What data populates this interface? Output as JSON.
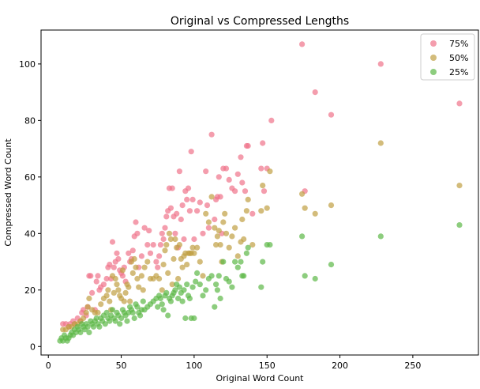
{
  "chart_data": {
    "type": "scatter",
    "title": "Original vs Compressed Lengths",
    "xlabel": "Original Word Count",
    "ylabel": "Compressed Word Count",
    "xlim": [
      -5,
      295
    ],
    "ylim": [
      -3,
      112
    ],
    "xticks": [
      0,
      50,
      100,
      150,
      200,
      250
    ],
    "yticks": [
      0,
      20,
      40,
      60,
      80,
      100
    ],
    "grid": false,
    "legend": "top-right",
    "series": [
      {
        "name": "75%",
        "color": "#f0748a",
        "points": [
          [
            10,
            8
          ],
          [
            12,
            8
          ],
          [
            14,
            7
          ],
          [
            15,
            8
          ],
          [
            17,
            9
          ],
          [
            18,
            8
          ],
          [
            20,
            10
          ],
          [
            22,
            9
          ],
          [
            23,
            12
          ],
          [
            24,
            13
          ],
          [
            26,
            11
          ],
          [
            27,
            14
          ],
          [
            28,
            25
          ],
          [
            29,
            25
          ],
          [
            30,
            19
          ],
          [
            32,
            13
          ],
          [
            33,
            23
          ],
          [
            34,
            25
          ],
          [
            35,
            20
          ],
          [
            36,
            21
          ],
          [
            38,
            22
          ],
          [
            40,
            24
          ],
          [
            41,
            28
          ],
          [
            42,
            29
          ],
          [
            43,
            24
          ],
          [
            44,
            37
          ],
          [
            45,
            28
          ],
          [
            46,
            30
          ],
          [
            47,
            33
          ],
          [
            48,
            31
          ],
          [
            49,
            27
          ],
          [
            50,
            26
          ],
          [
            51,
            25
          ],
          [
            52,
            28
          ],
          [
            53,
            23
          ],
          [
            55,
            33
          ],
          [
            56,
            30
          ],
          [
            57,
            31
          ],
          [
            58,
            34
          ],
          [
            59,
            39
          ],
          [
            60,
            44
          ],
          [
            61,
            40
          ],
          [
            62,
            28
          ],
          [
            64,
            32
          ],
          [
            66,
            42
          ],
          [
            68,
            36
          ],
          [
            69,
            41
          ],
          [
            70,
            33
          ],
          [
            72,
            36
          ],
          [
            74,
            30
          ],
          [
            75,
            28
          ],
          [
            76,
            32
          ],
          [
            77,
            36
          ],
          [
            78,
            40
          ],
          [
            79,
            38
          ],
          [
            80,
            42
          ],
          [
            81,
            46
          ],
          [
            82,
            48
          ],
          [
            83,
            56
          ],
          [
            84,
            49
          ],
          [
            85,
            56
          ],
          [
            86,
            46
          ],
          [
            87,
            40
          ],
          [
            88,
            47
          ],
          [
            89,
            35
          ],
          [
            90,
            62
          ],
          [
            91,
            45
          ],
          [
            92,
            50
          ],
          [
            93,
            38
          ],
          [
            94,
            55
          ],
          [
            95,
            52
          ],
          [
            96,
            56
          ],
          [
            97,
            48
          ],
          [
            98,
            69
          ],
          [
            99,
            52
          ],
          [
            100,
            38
          ],
          [
            102,
            48
          ],
          [
            104,
            51
          ],
          [
            106,
            40
          ],
          [
            108,
            62
          ],
          [
            109,
            50
          ],
          [
            110,
            42
          ],
          [
            112,
            75
          ],
          [
            114,
            45
          ],
          [
            115,
            52
          ],
          [
            116,
            53
          ],
          [
            117,
            60
          ],
          [
            118,
            53
          ],
          [
            119,
            40
          ],
          [
            120,
            63
          ],
          [
            122,
            63
          ],
          [
            124,
            59
          ],
          [
            126,
            56
          ],
          [
            128,
            55
          ],
          [
            130,
            61
          ],
          [
            132,
            67
          ],
          [
            133,
            58
          ],
          [
            135,
            55
          ],
          [
            136,
            71
          ],
          [
            137,
            71
          ],
          [
            140,
            47
          ],
          [
            146,
            63
          ],
          [
            147,
            72
          ],
          [
            148,
            55
          ],
          [
            150,
            63
          ],
          [
            153,
            80
          ],
          [
            174,
            107
          ],
          [
            176,
            55
          ],
          [
            183,
            90
          ],
          [
            194,
            82
          ],
          [
            228,
            100
          ],
          [
            282,
            86
          ]
        ]
      },
      {
        "name": "50%",
        "color": "#c1a043",
        "points": [
          [
            10,
            6
          ],
          [
            12,
            6
          ],
          [
            14,
            7
          ],
          [
            16,
            7
          ],
          [
            18,
            8
          ],
          [
            20,
            8
          ],
          [
            22,
            9
          ],
          [
            24,
            10
          ],
          [
            26,
            12
          ],
          [
            27,
            14
          ],
          [
            28,
            17
          ],
          [
            30,
            13
          ],
          [
            32,
            12
          ],
          [
            34,
            12
          ],
          [
            36,
            15
          ],
          [
            38,
            17
          ],
          [
            40,
            18
          ],
          [
            41,
            20
          ],
          [
            42,
            16
          ],
          [
            43,
            13
          ],
          [
            44,
            25
          ],
          [
            45,
            19
          ],
          [
            46,
            24
          ],
          [
            47,
            22
          ],
          [
            48,
            20
          ],
          [
            49,
            18
          ],
          [
            50,
            17
          ],
          [
            51,
            27
          ],
          [
            52,
            16
          ],
          [
            53,
            19
          ],
          [
            54,
            22
          ],
          [
            55,
            21
          ],
          [
            56,
            16
          ],
          [
            57,
            30
          ],
          [
            58,
            26
          ],
          [
            59,
            31
          ],
          [
            60,
            28
          ],
          [
            61,
            24
          ],
          [
            62,
            21
          ],
          [
            64,
            25
          ],
          [
            65,
            20
          ],
          [
            66,
            28
          ],
          [
            68,
            30
          ],
          [
            70,
            24
          ],
          [
            72,
            24
          ],
          [
            74,
            25
          ],
          [
            76,
            24
          ],
          [
            78,
            20
          ],
          [
            79,
            29
          ],
          [
            80,
            34
          ],
          [
            81,
            36
          ],
          [
            82,
            26
          ],
          [
            83,
            40
          ],
          [
            84,
            38
          ],
          [
            85,
            22
          ],
          [
            86,
            31
          ],
          [
            87,
            38
          ],
          [
            88,
            35
          ],
          [
            89,
            24
          ],
          [
            90,
            36
          ],
          [
            91,
            31
          ],
          [
            92,
            28
          ],
          [
            93,
            32
          ],
          [
            94,
            33
          ],
          [
            95,
            29
          ],
          [
            96,
            33
          ],
          [
            97,
            33
          ],
          [
            98,
            33
          ],
          [
            99,
            35
          ],
          [
            100,
            33
          ],
          [
            102,
            35
          ],
          [
            104,
            30
          ],
          [
            106,
            25
          ],
          [
            108,
            47
          ],
          [
            110,
            44
          ],
          [
            112,
            53
          ],
          [
            114,
            42
          ],
          [
            115,
            36
          ],
          [
            116,
            39
          ],
          [
            117,
            41
          ],
          [
            118,
            36
          ],
          [
            119,
            30
          ],
          [
            120,
            44
          ],
          [
            121,
            47
          ],
          [
            122,
            40
          ],
          [
            124,
            35
          ],
          [
            126,
            39
          ],
          [
            128,
            42
          ],
          [
            130,
            32
          ],
          [
            132,
            37
          ],
          [
            133,
            45
          ],
          [
            134,
            38
          ],
          [
            136,
            48
          ],
          [
            137,
            52
          ],
          [
            140,
            36
          ],
          [
            146,
            48
          ],
          [
            147,
            57
          ],
          [
            150,
            49
          ],
          [
            152,
            62
          ],
          [
            174,
            54
          ],
          [
            176,
            49
          ],
          [
            183,
            47
          ],
          [
            194,
            50
          ],
          [
            228,
            72
          ],
          [
            282,
            57
          ]
        ]
      },
      {
        "name": "25%",
        "color": "#5cb847",
        "points": [
          [
            8,
            2
          ],
          [
            9,
            3
          ],
          [
            10,
            2
          ],
          [
            11,
            4
          ],
          [
            12,
            3
          ],
          [
            13,
            2
          ],
          [
            14,
            3
          ],
          [
            15,
            4
          ],
          [
            16,
            5
          ],
          [
            17,
            4
          ],
          [
            18,
            6
          ],
          [
            19,
            5
          ],
          [
            20,
            7
          ],
          [
            21,
            6
          ],
          [
            22,
            5
          ],
          [
            23,
            8
          ],
          [
            24,
            7
          ],
          [
            25,
            6
          ],
          [
            26,
            8
          ],
          [
            27,
            7
          ],
          [
            28,
            5
          ],
          [
            29,
            9
          ],
          [
            30,
            8
          ],
          [
            31,
            7
          ],
          [
            32,
            9
          ],
          [
            33,
            10
          ],
          [
            34,
            8
          ],
          [
            35,
            7
          ],
          [
            36,
            10
          ],
          [
            37,
            9
          ],
          [
            38,
            11
          ],
          [
            39,
            8
          ],
          [
            40,
            12
          ],
          [
            41,
            10
          ],
          [
            42,
            9
          ],
          [
            43,
            11
          ],
          [
            44,
            13
          ],
          [
            45,
            10
          ],
          [
            46,
            9
          ],
          [
            47,
            12
          ],
          [
            48,
            11
          ],
          [
            49,
            8
          ],
          [
            50,
            10
          ],
          [
            51,
            13
          ],
          [
            52,
            12
          ],
          [
            53,
            11
          ],
          [
            54,
            9
          ],
          [
            55,
            12
          ],
          [
            56,
            14
          ],
          [
            57,
            13
          ],
          [
            58,
            12
          ],
          [
            59,
            10
          ],
          [
            60,
            15
          ],
          [
            61,
            14
          ],
          [
            62,
            12
          ],
          [
            63,
            11
          ],
          [
            64,
            13
          ],
          [
            65,
            16
          ],
          [
            66,
            13
          ],
          [
            68,
            14
          ],
          [
            70,
            15
          ],
          [
            72,
            16
          ],
          [
            74,
            17
          ],
          [
            75,
            14
          ],
          [
            76,
            18
          ],
          [
            77,
            17
          ],
          [
            78,
            15
          ],
          [
            79,
            13
          ],
          [
            80,
            18
          ],
          [
            81,
            19
          ],
          [
            82,
            11
          ],
          [
            83,
            17
          ],
          [
            84,
            16
          ],
          [
            85,
            18
          ],
          [
            86,
            19
          ],
          [
            87,
            20
          ],
          [
            88,
            22
          ],
          [
            89,
            17
          ],
          [
            90,
            21
          ],
          [
            91,
            19
          ],
          [
            92,
            16
          ],
          [
            93,
            20
          ],
          [
            94,
            10
          ],
          [
            95,
            22
          ],
          [
            96,
            18
          ],
          [
            97,
            17
          ],
          [
            98,
            10
          ],
          [
            99,
            21
          ],
          [
            100,
            10
          ],
          [
            101,
            23
          ],
          [
            102,
            26
          ],
          [
            104,
            22
          ],
          [
            106,
            18
          ],
          [
            108,
            20
          ],
          [
            110,
            24
          ],
          [
            112,
            25
          ],
          [
            114,
            14
          ],
          [
            115,
            22
          ],
          [
            116,
            20
          ],
          [
            117,
            25
          ],
          [
            118,
            17
          ],
          [
            120,
            30
          ],
          [
            122,
            24
          ],
          [
            124,
            23
          ],
          [
            126,
            21
          ],
          [
            128,
            30
          ],
          [
            130,
            28
          ],
          [
            132,
            30
          ],
          [
            133,
            25
          ],
          [
            134,
            25
          ],
          [
            136,
            33
          ],
          [
            137,
            35
          ],
          [
            146,
            21
          ],
          [
            147,
            30
          ],
          [
            150,
            36
          ],
          [
            152,
            36
          ],
          [
            174,
            39
          ],
          [
            176,
            25
          ],
          [
            183,
            24
          ],
          [
            194,
            29
          ],
          [
            228,
            39
          ],
          [
            282,
            43
          ]
        ]
      }
    ]
  }
}
